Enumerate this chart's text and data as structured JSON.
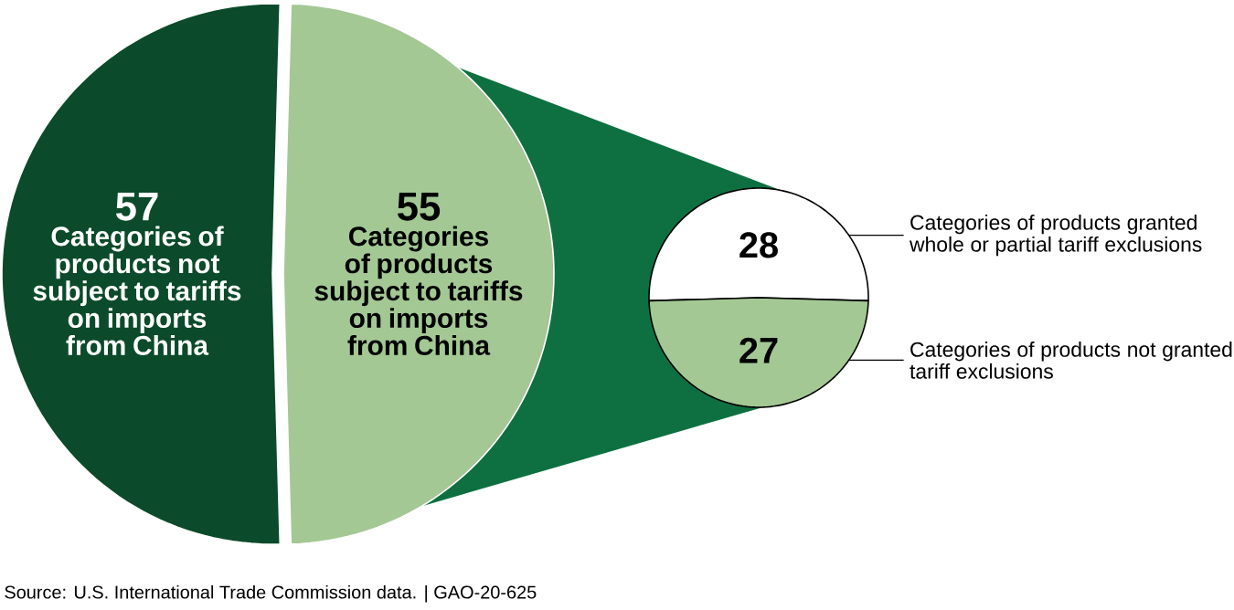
{
  "chart_data": [
    {
      "type": "pie",
      "categories": [
        "Categories of products not subject to tariffs on imports from China",
        "Categories of products subject to tariffs on imports from China"
      ],
      "values": [
        57,
        55
      ],
      "colors": [
        "#0b4a2a",
        "#a3c894"
      ],
      "data_labels": true,
      "annotations": [
        "Source: U.S. International Trade Commission data. | GAO-20-625"
      ]
    },
    {
      "type": "pie",
      "categories": [
        "Categories of products granted whole or partial tariff exclusions",
        "Categories of products not granted tariff exclusions"
      ],
      "values": [
        28,
        27
      ],
      "colors": [
        "#ffffff",
        "#a3c894"
      ],
      "data_labels": true
    }
  ]
}
